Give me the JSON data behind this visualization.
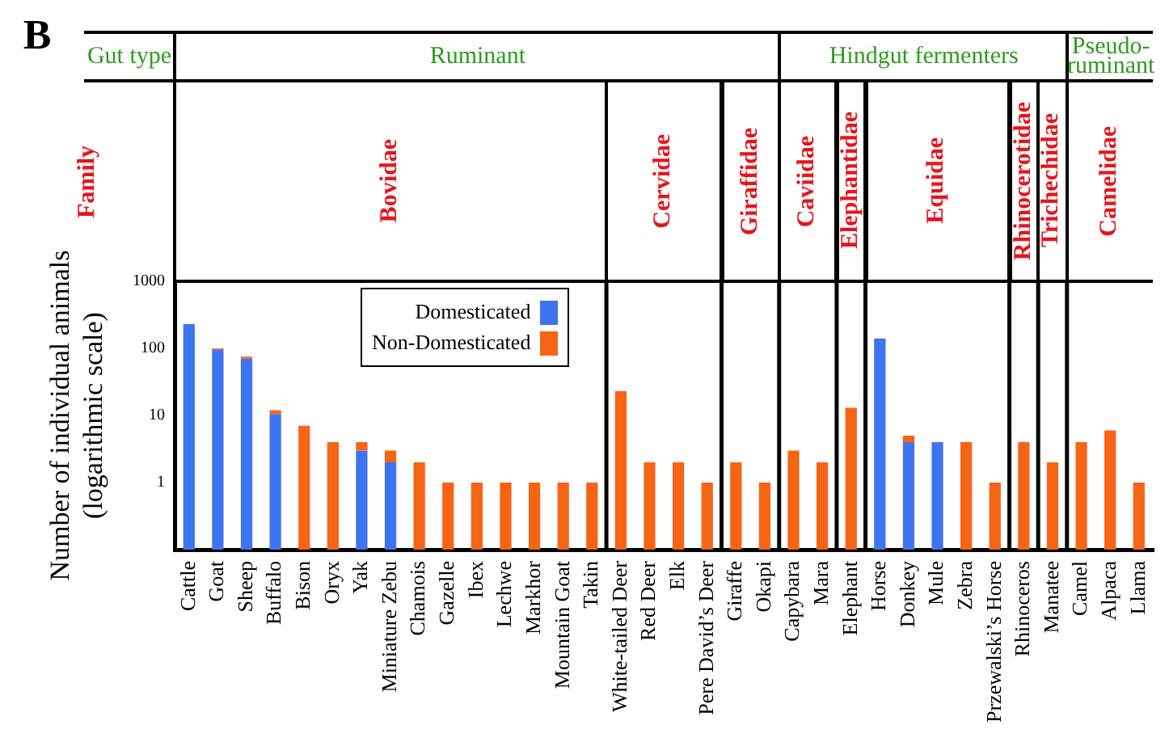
{
  "chart_data": {
    "type": "bar",
    "stacked": true,
    "log": "y",
    "ylabel": "Number of individual animals\n(logarithmic scale)",
    "categories": [
      "Cattle",
      "Goat",
      "Sheep",
      "Buffalo",
      "Bison",
      "Oryx",
      "Yak",
      "Miniature Zebu",
      "Chamois",
      "Gazelle",
      "Ibex",
      "Lechwe",
      "Markhor",
      "Mountain Goat",
      "Takin",
      "White-tailed Deer",
      "Red Deer",
      "Elk",
      "Pere David’s Deer",
      "Giraffe",
      "Okapi",
      "Capybara",
      "Mara",
      "Elephant",
      "Horse",
      "Donkey",
      "Mule",
      "Zebra",
      "Przewalski’s Horse",
      "Rhinoceros",
      "Manatee",
      "Camel",
      "Alpaca",
      "Llama"
    ],
    "series": [
      {
        "name": "Domesticated",
        "color": "#3f74f0",
        "values": [
          230,
          95,
          70,
          10.5,
          null,
          null,
          3,
          2,
          null,
          null,
          null,
          null,
          null,
          null,
          null,
          null,
          null,
          null,
          null,
          null,
          null,
          null,
          null,
          null,
          140,
          4,
          4,
          null,
          null,
          null,
          null,
          null,
          null,
          null
        ]
      },
      {
        "name": "Non-Domesticated",
        "color": "#f66414",
        "values": [
          null,
          5,
          5,
          1.5,
          7,
          4,
          1,
          1,
          2,
          1,
          1,
          1,
          1,
          1,
          1,
          23,
          2,
          2,
          1,
          2,
          1,
          3,
          2,
          13,
          null,
          1,
          null,
          4,
          1,
          4,
          2,
          4,
          6,
          1
        ]
      }
    ],
    "ylim": [
      0.1,
      1000
    ],
    "yticks": [
      1,
      10,
      100,
      1000
    ],
    "legend": "top left",
    "annotations": [
      "B",
      "Gut type",
      "Ruminant",
      "Hindgut fermenters",
      "Pseudo-ruminant",
      "Family",
      "Bovidae",
      "Cervidae",
      "Giraffidae",
      "Caviidae",
      "Elephantidae",
      "Equidae",
      "Rhinocerotidae",
      "Trichechidae",
      "Camelidae"
    ]
  }
}
